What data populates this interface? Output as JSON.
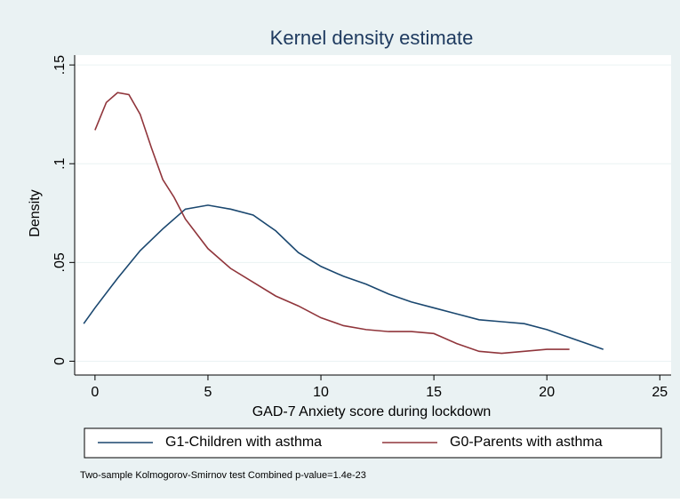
{
  "chart_data": {
    "type": "line",
    "title": "Kernel density estimate",
    "x_label": "GAD-7 Anxiety score  during lockdown",
    "y_label": "Density",
    "note": "Two-sample Kolmogorov-Smirnov test Combined p-value=1.4e-23",
    "xlim": [
      -0.9,
      25.5
    ],
    "xticks": [
      0,
      5,
      10,
      15,
      20,
      25
    ],
    "ylim": [
      -0.007,
      0.155
    ],
    "yticks": [
      0,
      {
        "value": 0.05,
        "label": ".05"
      },
      {
        "value": 0.1,
        "label": ".1"
      },
      {
        "value": 0.15,
        "label": ".15"
      }
    ],
    "grid": true,
    "legend": "bottom",
    "series": [
      {
        "name": "G1-Children with asthma",
        "color": "#1a476f",
        "x": [
          -0.5,
          0,
          1,
          2,
          3,
          4,
          5,
          6,
          7,
          8,
          9,
          10,
          11,
          12,
          13,
          14,
          15,
          16,
          17,
          18,
          19,
          20,
          21,
          22,
          22.5
        ],
        "values": [
          0.019,
          0.027,
          0.042,
          0.056,
          0.067,
          0.077,
          0.079,
          0.077,
          0.074,
          0.066,
          0.055,
          0.048,
          0.043,
          0.039,
          0.034,
          0.03,
          0.027,
          0.024,
          0.021,
          0.02,
          0.019,
          0.016,
          0.012,
          0.008,
          0.006
        ]
      },
      {
        "name": "G0-Parents with asthma",
        "color": "#90353b",
        "x": [
          0,
          0.5,
          1,
          1.5,
          2,
          2.5,
          3,
          3.5,
          4,
          5,
          6,
          7,
          8,
          9,
          10,
          11,
          12,
          13,
          14,
          15,
          16,
          17,
          18,
          19,
          20,
          21
        ],
        "values": [
          0.117,
          0.131,
          0.136,
          0.135,
          0.125,
          0.108,
          0.092,
          0.083,
          0.072,
          0.057,
          0.047,
          0.04,
          0.033,
          0.028,
          0.022,
          0.018,
          0.016,
          0.015,
          0.015,
          0.014,
          0.009,
          0.005,
          0.004,
          0.005,
          0.006,
          0.006
        ]
      }
    ]
  }
}
